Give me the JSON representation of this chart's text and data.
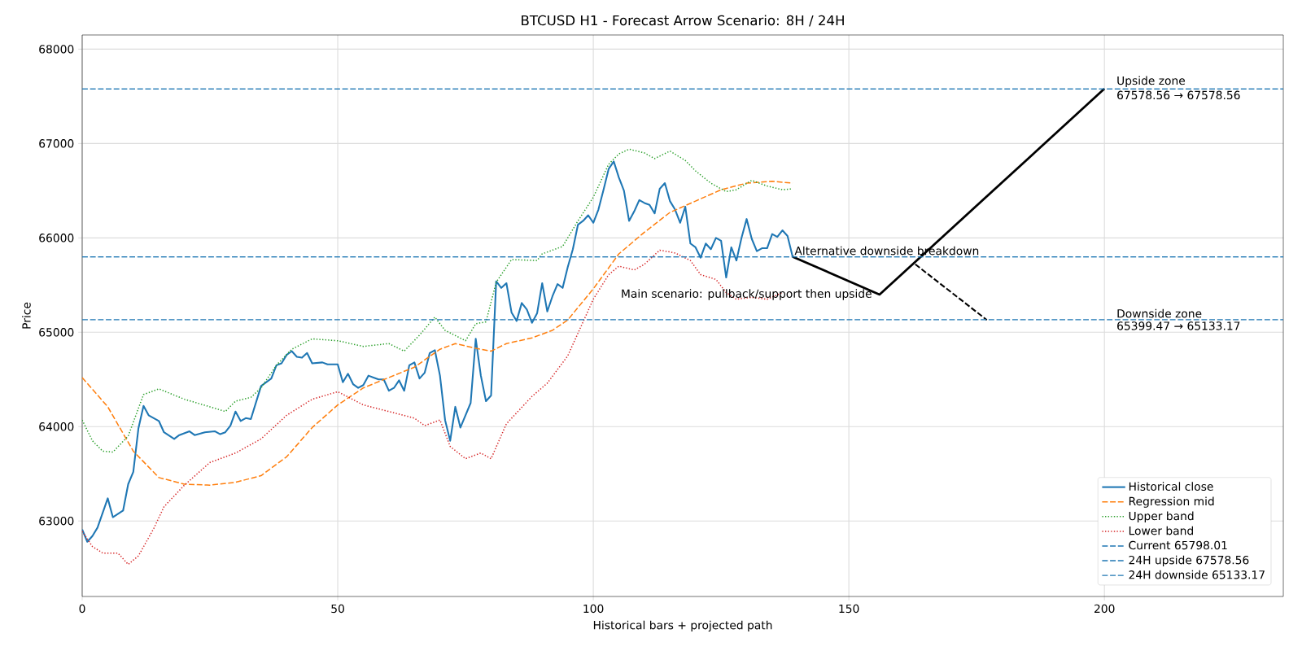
{
  "chart_data": {
    "type": "line",
    "title": "BTCUSD H1 - Forecast Arrow Scenario: 8H / 24H",
    "xlabel": "Historical bars + projected path",
    "ylabel": "Price",
    "xlim": [
      0,
      235
    ],
    "ylim": [
      62200,
      68150
    ],
    "xticks": [
      0,
      50,
      100,
      150,
      200
    ],
    "yticks": [
      63000,
      64000,
      65000,
      66000,
      67000,
      68000
    ],
    "grid": true,
    "legend": "bottom right",
    "series": [
      {
        "name": "Historical close",
        "color": "#1f77b4",
        "line_style": "solid",
        "x": [
          0,
          1,
          2,
          3,
          5,
          6,
          8,
          9,
          10,
          11,
          12,
          13,
          15,
          16,
          18,
          19,
          21,
          22,
          24,
          26,
          27,
          28,
          29,
          30,
          31,
          32,
          33,
          35,
          37,
          38,
          39,
          40,
          41,
          42,
          43,
          44,
          45,
          47,
          48,
          50,
          51,
          52,
          53,
          54,
          55,
          56,
          57,
          58,
          59,
          60,
          61,
          62,
          63,
          64,
          65,
          66,
          67,
          68,
          69,
          70,
          71,
          72,
          73,
          74,
          76,
          77,
          78,
          79,
          80,
          81,
          82,
          83,
          84,
          85,
          86,
          87,
          88,
          89,
          90,
          91,
          92,
          93,
          94,
          95,
          96,
          97,
          98,
          99,
          100,
          101,
          102,
          103,
          104,
          105,
          106,
          107,
          108,
          109,
          110,
          111,
          112,
          113,
          114,
          115,
          116,
          117,
          118,
          119,
          120,
          121,
          122,
          123,
          124,
          125,
          126,
          127,
          128,
          129,
          130,
          131,
          132,
          133,
          134,
          135,
          136,
          137,
          138,
          139
        ],
        "values": [
          62910,
          62780,
          62840,
          62930,
          63240,
          63040,
          63110,
          63390,
          63520,
          63980,
          64220,
          64120,
          64060,
          63940,
          63870,
          63910,
          63950,
          63910,
          63940,
          63950,
          63920,
          63940,
          64010,
          64160,
          64060,
          64090,
          64080,
          64430,
          64510,
          64650,
          64670,
          64760,
          64800,
          64740,
          64730,
          64780,
          64670,
          64680,
          64660,
          64660,
          64470,
          64560,
          64450,
          64410,
          64440,
          64540,
          64520,
          64500,
          64500,
          64380,
          64410,
          64490,
          64380,
          64650,
          64680,
          64510,
          64570,
          64780,
          64810,
          64540,
          64070,
          63850,
          64210,
          63990,
          64250,
          64930,
          64540,
          64270,
          64330,
          65540,
          65470,
          65520,
          65210,
          65120,
          65310,
          65240,
          65100,
          65200,
          65520,
          65220,
          65380,
          65510,
          65470,
          65690,
          65880,
          66140,
          66180,
          66240,
          66160,
          66300,
          66510,
          66730,
          66810,
          66640,
          66500,
          66180,
          66280,
          66400,
          66370,
          66350,
          66260,
          66520,
          66580,
          66390,
          66300,
          66160,
          66330,
          65940,
          65900,
          65790,
          65940,
          65880,
          66000,
          65970,
          65580,
          65900,
          65760,
          66000,
          66200,
          65990,
          65860,
          65890,
          65890,
          66040,
          66010,
          66080,
          66020,
          65800
        ]
      },
      {
        "name": "Regression mid",
        "color": "#ff7f0e",
        "line_style": "dashed",
        "x": [
          0,
          5,
          10,
          15,
          20,
          25,
          30,
          35,
          40,
          45,
          50,
          55,
          60,
          65,
          70,
          73,
          77,
          80,
          83,
          88,
          92,
          95,
          100,
          105,
          110,
          115,
          120,
          125,
          130,
          135,
          139
        ],
        "values": [
          64520,
          64210,
          63740,
          63460,
          63390,
          63380,
          63410,
          63480,
          63680,
          63990,
          64230,
          64410,
          64520,
          64630,
          64820,
          64880,
          64830,
          64800,
          64880,
          64940,
          65020,
          65130,
          65460,
          65830,
          66060,
          66270,
          66390,
          66510,
          66580,
          66600,
          66580
        ]
      },
      {
        "name": "Upper band",
        "color": "#2ca02c",
        "line_style": "dotted",
        "x": [
          0,
          2,
          4,
          6,
          9,
          12,
          15,
          20,
          25,
          28,
          30,
          33,
          35,
          38,
          41,
          45,
          50,
          55,
          60,
          63,
          66,
          69,
          71,
          75,
          77,
          79,
          81,
          84,
          89,
          90,
          94,
          97,
          100,
          103,
          105,
          107,
          110,
          112,
          115,
          118,
          120,
          123,
          126,
          128,
          131,
          134,
          137,
          139
        ],
        "values": [
          64070,
          63850,
          63740,
          63730,
          63900,
          64340,
          64400,
          64290,
          64210,
          64160,
          64270,
          64310,
          64410,
          64650,
          64820,
          64930,
          64910,
          64850,
          64880,
          64800,
          64970,
          65160,
          65020,
          64910,
          65090,
          65110,
          65530,
          65770,
          65760,
          65830,
          65910,
          66180,
          66430,
          66780,
          66890,
          66940,
          66900,
          66840,
          66920,
          66820,
          66710,
          66580,
          66490,
          66510,
          66610,
          66550,
          66510,
          66520
        ]
      },
      {
        "name": "Lower band",
        "color": "#d62728",
        "line_style": "dotted",
        "x": [
          0,
          2,
          4,
          7,
          9,
          11,
          14,
          16,
          20,
          25,
          30,
          35,
          40,
          45,
          50,
          55,
          60,
          65,
          67,
          70,
          72,
          75,
          78,
          80,
          83,
          88,
          91,
          95,
          100,
          103,
          105,
          108,
          110,
          113,
          116,
          119,
          121,
          124,
          126,
          128,
          131,
          134,
          137
        ],
        "values": [
          62890,
          62730,
          62660,
          62660,
          62540,
          62630,
          62920,
          63150,
          63380,
          63620,
          63720,
          63870,
          64120,
          64290,
          64370,
          64230,
          64160,
          64090,
          64010,
          64070,
          63790,
          63660,
          63720,
          63660,
          64030,
          64320,
          64460,
          64750,
          65350,
          65610,
          65700,
          65660,
          65720,
          65870,
          65840,
          65760,
          65610,
          65560,
          65420,
          65350,
          65370,
          65350,
          65420
        ]
      },
      {
        "color": "#000000",
        "line_style": "solid",
        "x": [
          139,
          156,
          200
        ],
        "values": [
          65800,
          65400,
          67580
        ]
      },
      {
        "color": "#000000",
        "line_style": "dashed",
        "x": [
          163,
          177
        ],
        "values": [
          65720,
          65130
        ]
      }
    ],
    "ref_lines": [
      {
        "axis": "y",
        "value": 65798.01,
        "label": "Current 65798.01",
        "color": "#1f77b4",
        "line_style": "dashed"
      },
      {
        "axis": "y",
        "value": 67578.56,
        "label": "24H upside 67578.56",
        "color": "#1f77b4",
        "line_style": "dashed"
      },
      {
        "axis": "y",
        "value": 65133.17,
        "label": "24H downside 65133.17",
        "color": "#1f77b4",
        "line_style": "dashed"
      }
    ],
    "annotations": [
      {
        "text": "Alternative downside breakdown",
        "x": 139,
        "y": 65798.01
      },
      {
        "text": "Main scenario: pullback/support then upside",
        "x": 156,
        "y": 65399.47
      },
      {
        "text": "Upside zone",
        "x": 202,
        "y": 67578.56
      },
      {
        "text": "67578.56 → 67578.56",
        "x": 202,
        "y": 67578.56
      },
      {
        "text": "Downside zone",
        "x": 202,
        "y": 65133.17
      },
      {
        "text": "65399.47 → 65133.17",
        "x": 202,
        "y": 65133.17
      }
    ]
  }
}
